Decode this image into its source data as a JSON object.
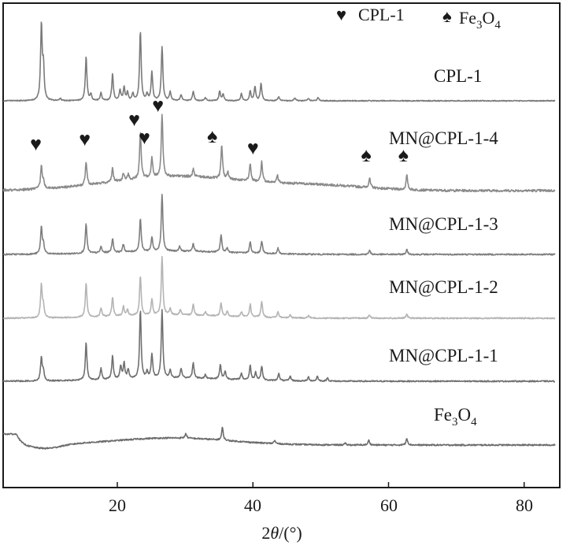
{
  "chart_data": {
    "type": "line",
    "title": "",
    "xlabel": "2θ/(°)",
    "ylabel": "",
    "xlim": [
      3,
      85
    ],
    "xticks": [
      20,
      40,
      60,
      80
    ],
    "grid": false,
    "legend": {
      "position": "top-right",
      "entries": [
        {
          "symbol": "♥",
          "label": "CPL-1"
        },
        {
          "symbol": "♠",
          "label": "Fe3O4"
        }
      ]
    },
    "series": [
      {
        "name": "CPL-1",
        "color": "#7a7a7a",
        "baseline": "flat",
        "noise": 0.6,
        "peaks": [
          [
            8.8,
            95
          ],
          [
            9.1,
            40
          ],
          [
            11.6,
            3
          ],
          [
            15.4,
            56
          ],
          [
            16.1,
            8
          ],
          [
            17.6,
            10
          ],
          [
            19.3,
            34
          ],
          [
            20.4,
            13
          ],
          [
            21.0,
            17
          ],
          [
            21.5,
            10
          ],
          [
            22.3,
            9
          ],
          [
            23.4,
            88
          ],
          [
            24.4,
            8
          ],
          [
            25.1,
            36
          ],
          [
            26.6,
            68
          ],
          [
            27.8,
            11
          ],
          [
            29.4,
            8
          ],
          [
            31.2,
            12
          ],
          [
            33.0,
            4
          ],
          [
            35.1,
            12
          ],
          [
            35.6,
            8
          ],
          [
            38.3,
            9
          ],
          [
            39.6,
            12
          ],
          [
            40.3,
            18
          ],
          [
            41.2,
            22
          ],
          [
            43.8,
            5
          ],
          [
            46.2,
            4
          ],
          [
            48.2,
            3
          ],
          [
            49.6,
            4
          ]
        ]
      },
      {
        "name": "MN@CPL-1-4",
        "color": "#8a8a8a",
        "baseline": "hump",
        "noise": 1.5,
        "peaks": [
          [
            8.8,
            28
          ],
          [
            9.1,
            10
          ],
          [
            15.4,
            30
          ],
          [
            19.3,
            17
          ],
          [
            20.9,
            9
          ],
          [
            21.6,
            7
          ],
          [
            23.4,
            58
          ],
          [
            25.1,
            24
          ],
          [
            26.6,
            80
          ],
          [
            31.2,
            10
          ],
          [
            35.4,
            42
          ],
          [
            36.3,
            8
          ],
          [
            39.6,
            22
          ],
          [
            41.3,
            25
          ],
          [
            43.6,
            10
          ],
          [
            57.2,
            12
          ],
          [
            62.7,
            18
          ]
        ]
      },
      {
        "name": "MN@CPL-1-3",
        "color": "#7e7e7e",
        "baseline": "bump",
        "noise": 0.9,
        "peaks": [
          [
            8.8,
            34
          ],
          [
            9.1,
            12
          ],
          [
            15.4,
            38
          ],
          [
            17.6,
            8
          ],
          [
            19.3,
            18
          ],
          [
            20.9,
            10
          ],
          [
            23.4,
            42
          ],
          [
            25.1,
            18
          ],
          [
            26.6,
            72
          ],
          [
            29.2,
            6
          ],
          [
            31.2,
            10
          ],
          [
            35.3,
            22
          ],
          [
            36.2,
            6
          ],
          [
            39.6,
            14
          ],
          [
            41.3,
            16
          ],
          [
            43.7,
            7
          ],
          [
            57.2,
            5
          ],
          [
            62.7,
            6
          ]
        ]
      },
      {
        "name": "MN@CPL-1-2",
        "color": "#b4b4b4",
        "baseline": "bump",
        "noise": 0.8,
        "peaks": [
          [
            8.8,
            42
          ],
          [
            9.1,
            14
          ],
          [
            15.4,
            44
          ],
          [
            17.6,
            11
          ],
          [
            19.3,
            24
          ],
          [
            20.9,
            12
          ],
          [
            21.5,
            8
          ],
          [
            23.4,
            50
          ],
          [
            25.1,
            20
          ],
          [
            26.6,
            74
          ],
          [
            27.8,
            8
          ],
          [
            29.3,
            7
          ],
          [
            31.2,
            14
          ],
          [
            33.0,
            5
          ],
          [
            35.3,
            16
          ],
          [
            36.2,
            6
          ],
          [
            38.3,
            6
          ],
          [
            39.6,
            16
          ],
          [
            41.3,
            20
          ],
          [
            43.7,
            7
          ],
          [
            45.5,
            4
          ],
          [
            48.2,
            3
          ],
          [
            57.2,
            4
          ],
          [
            62.7,
            5
          ]
        ]
      },
      {
        "name": "MN@CPL-1-1",
        "color": "#6f6f6f",
        "baseline": "bump",
        "noise": 0.8,
        "peaks": [
          [
            8.8,
            30
          ],
          [
            9.1,
            12
          ],
          [
            15.4,
            48
          ],
          [
            17.6,
            14
          ],
          [
            19.3,
            30
          ],
          [
            20.5,
            16
          ],
          [
            21.0,
            20
          ],
          [
            21.6,
            12
          ],
          [
            23.4,
            86
          ],
          [
            24.4,
            8
          ],
          [
            25.1,
            30
          ],
          [
            26.6,
            86
          ],
          [
            27.8,
            10
          ],
          [
            29.4,
            12
          ],
          [
            31.2,
            20
          ],
          [
            33.0,
            5
          ],
          [
            35.2,
            18
          ],
          [
            35.9,
            10
          ],
          [
            38.3,
            8
          ],
          [
            39.6,
            18
          ],
          [
            40.4,
            10
          ],
          [
            41.3,
            18
          ],
          [
            43.8,
            9
          ],
          [
            45.5,
            6
          ],
          [
            48.2,
            5
          ],
          [
            49.5,
            6
          ],
          [
            51.0,
            4
          ]
        ]
      },
      {
        "name": "Fe3O4",
        "color": "#6c6c6c",
        "baseline": "fe3o4",
        "noise": 0.9,
        "peaks": [
          [
            30.1,
            6
          ],
          [
            35.5,
            16
          ],
          [
            43.2,
            4
          ],
          [
            53.6,
            2
          ],
          [
            57.1,
            6
          ],
          [
            62.7,
            9
          ]
        ]
      }
    ],
    "annotations": [
      {
        "symbol": "♥",
        "x": 8.0
      },
      {
        "symbol": "♥",
        "x": 15.2
      },
      {
        "symbol": "♥",
        "x": 22.5
      },
      {
        "symbol": "♥",
        "x": 24.0
      },
      {
        "symbol": "♥",
        "x": 26.0
      },
      {
        "symbol": "♠",
        "x": 34.0
      },
      {
        "symbol": "♥",
        "x": 40.0
      },
      {
        "symbol": "♠",
        "x": 56.7
      },
      {
        "symbol": "♠",
        "x": 62.2
      }
    ]
  },
  "labels": {
    "cpl1": "CPL-1",
    "mn4": "MN@CPL-1-4",
    "mn3": "MN@CPL-1-3",
    "mn2": "MN@CPL-1-2",
    "mn1": "MN@CPL-1-1",
    "fe_base": "Fe",
    "fe_sub1": "3",
    "fe_mid": "O",
    "fe_sub2": "4"
  },
  "legend_text": {
    "heart": "♥",
    "cpl1": "CPL-1",
    "spade": "♠",
    "fe_base": "Fe",
    "fe_sub1": "3",
    "fe_mid": "O",
    "fe_sub2": "4"
  },
  "axis": {
    "xlabel_prefix": "2",
    "xlabel_theta": "θ",
    "xlabel_suffix": "/(°)",
    "ticks": [
      "20",
      "40",
      "60",
      "80"
    ]
  }
}
